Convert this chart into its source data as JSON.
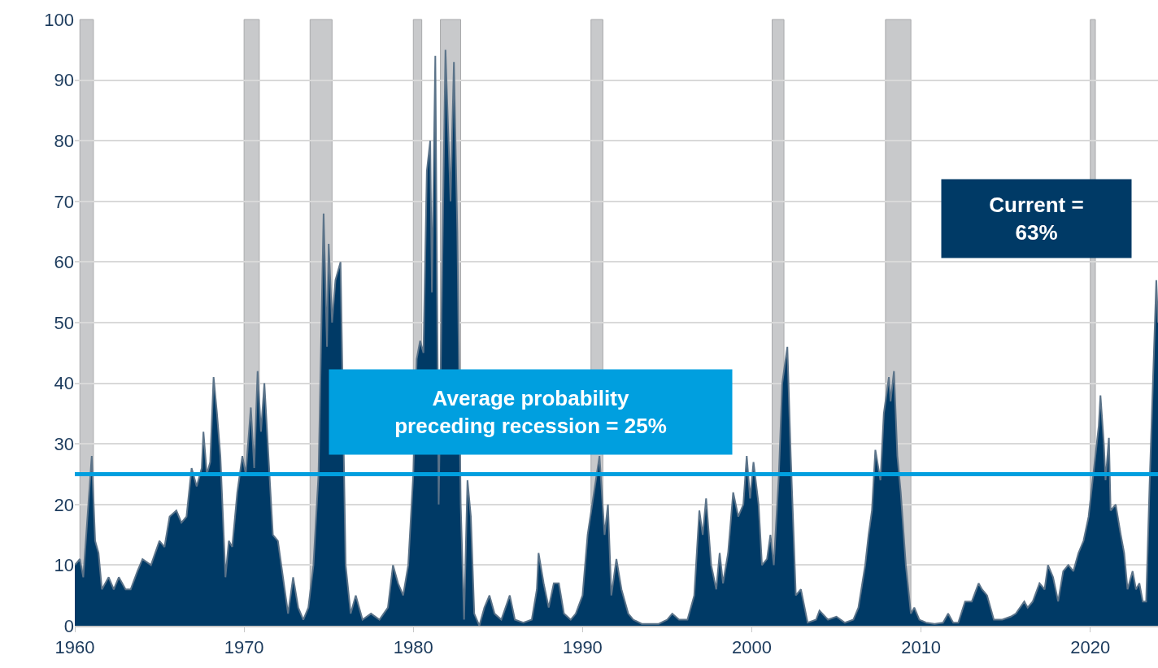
{
  "chart_data": {
    "type": "area",
    "x": [
      1960,
      1960.3,
      1960.5,
      1960.8,
      1961.0,
      1961.2,
      1961.4,
      1961.6,
      1962,
      1962.3,
      1962.6,
      1963,
      1963.3,
      1963.7,
      1964,
      1964.5,
      1965,
      1965.3,
      1965.6,
      1966,
      1966.3,
      1966.6,
      1966.9,
      1967.2,
      1967.5,
      1967.6,
      1967.8,
      1968,
      1968.2,
      1968.4,
      1968.6,
      1968.9,
      1969.1,
      1969.3,
      1969.6,
      1969.9,
      1970.1,
      1970.4,
      1970.6,
      1970.8,
      1971.0,
      1971.2,
      1971.4,
      1971.7,
      1972,
      1972.3,
      1972.6,
      1972.9,
      1973.2,
      1973.5,
      1973.8,
      1974.1,
      1974.4,
      1974.7,
      1974.9,
      1975.0,
      1975.2,
      1975.4,
      1975.6,
      1975.7,
      1975.8,
      1976,
      1976.3,
      1976.6,
      1977,
      1977.5,
      1978,
      1978.5,
      1978.8,
      1979.1,
      1979.4,
      1979.7,
      1980.0,
      1980.2,
      1980.4,
      1980.6,
      1980.8,
      1981.0,
      1981.1,
      1981.3,
      1981.5,
      1981.7,
      1981.9,
      1982.2,
      1982.4,
      1982.6,
      1982.8,
      1983.0,
      1983.2,
      1983.4,
      1983.6,
      1983.9,
      1984.2,
      1984.5,
      1984.8,
      1985.2,
      1985.7,
      1986,
      1986.5,
      1987,
      1987.3,
      1987.4,
      1987.7,
      1988,
      1988.3,
      1988.6,
      1988.9,
      1989.3,
      1989.6,
      1990,
      1990.3,
      1990.7,
      1991,
      1991.3,
      1991.5,
      1991.7,
      1992,
      1992.3,
      1992.7,
      1993,
      1993.5,
      1994.5,
      1995,
      1995.3,
      1995.7,
      1996.2,
      1996.6,
      1996.9,
      1997.1,
      1997.3,
      1997.6,
      1997.9,
      1998.1,
      1998.3,
      1998.6,
      1998.9,
      1999.2,
      1999.5,
      1999.7,
      1999.9,
      2000.1,
      2000.4,
      2000.6,
      2000.9,
      2001.1,
      2001.3,
      2001.6,
      2001.8,
      2002.1,
      2002.3,
      2002.6,
      2002.9,
      2003.3,
      2003.8,
      2004,
      2004.5,
      2005,
      2005.5,
      2006,
      2006.3,
      2006.7,
      2006.9,
      2007.1,
      2007.3,
      2007.6,
      2007.8,
      2008.1,
      2008.2,
      2008.4,
      2008.6,
      2008.8,
      2009.1,
      2009.4,
      2009.6,
      2009.9,
      2010.3,
      2010.8,
      2011.3,
      2011.6,
      2011.9,
      2012.2,
      2012.6,
      2013,
      2013.4,
      2013.6,
      2013.9,
      2014.3,
      2014.8,
      2015.3,
      2015.6,
      2016.1,
      2016.3,
      2016.6,
      2017,
      2017.3,
      2017.5,
      2017.8,
      2018.1,
      2018.4,
      2018.7,
      2019,
      2019.3,
      2019.6,
      2019.9,
      2020.1,
      2020.3,
      2020.5,
      2020.6,
      2020.8,
      2020.9,
      2021.1,
      2021.2,
      2021.5,
      2021.8,
      2022.0,
      2022.2,
      2022.5,
      2022.7,
      2022.9,
      2023.1,
      2023.3,
      2023.5,
      2023.7,
      2023.9,
      2024.0
    ],
    "series": [
      {
        "color": "#003a66",
        "values": [
          10,
          11,
          8,
          20,
          28,
          14,
          12,
          6,
          8,
          6,
          8,
          6,
          6,
          9,
          11,
          10,
          14,
          13,
          18,
          19,
          17,
          18,
          26,
          23,
          26,
          32,
          25,
          27,
          41,
          35,
          28,
          8,
          14,
          13,
          22,
          28,
          25,
          36,
          26,
          42,
          32,
          40,
          30,
          15,
          14,
          8,
          2,
          8,
          3,
          1,
          3,
          10,
          25,
          68,
          46,
          63,
          50,
          57,
          null,
          60,
          null,
          10,
          2,
          5,
          1,
          2,
          1,
          3,
          10,
          7,
          5,
          10,
          25,
          44,
          47,
          45,
          75,
          80,
          55,
          94,
          20,
          null,
          95,
          70,
          93,
          65,
          20,
          1,
          24,
          18,
          2,
          0,
          3,
          5,
          2,
          1,
          5,
          1,
          0.5,
          1,
          6,
          12,
          7,
          3,
          7,
          7,
          2,
          1,
          2,
          5,
          15,
          null,
          28,
          15,
          20,
          5,
          11,
          6,
          2,
          1,
          0.3,
          0.3,
          1,
          2,
          1,
          1,
          5,
          19,
          15,
          21,
          10,
          6,
          12,
          7,
          12,
          22,
          18,
          20,
          28,
          21,
          27,
          20,
          10,
          11,
          15,
          10,
          25,
          40,
          46,
          28,
          5,
          6,
          0.5,
          1,
          2.5,
          1,
          1.5,
          0.5,
          1,
          3,
          10,
          15,
          19,
          29,
          24,
          35,
          41,
          37,
          42,
          28,
          22,
          10,
          2,
          3,
          1,
          0.5,
          0.3,
          0.5,
          2,
          0.5,
          0.5,
          4,
          4,
          7,
          6,
          5,
          1,
          1,
          1.5,
          2,
          4,
          3,
          4,
          7,
          6,
          10,
          8,
          4,
          9,
          10,
          9,
          12,
          14,
          18,
          23,
          28,
          33,
          38,
          30,
          24,
          31,
          19,
          20,
          15,
          12,
          6,
          9,
          6,
          7,
          4,
          4,
          23,
          40,
          57,
          50
        ]
      }
    ],
    "xlim": [
      1960,
      2024
    ],
    "xticks": [
      1960,
      1970,
      1980,
      1990,
      2000,
      2010,
      2020
    ],
    "ylim": [
      0,
      100
    ],
    "yticks": [
      0,
      10,
      20,
      30,
      40,
      50,
      60,
      70,
      80,
      90,
      100
    ],
    "grid": "y",
    "ref_lines": [
      {
        "axis": "y",
        "value": 25,
        "color": "#009fdf"
      }
    ],
    "bands": [
      {
        "axis": "x",
        "from": 1960.3,
        "to": 1961.1,
        "color": "#c8c9cb"
      },
      {
        "axis": "x",
        "from": 1970.0,
        "to": 1970.9,
        "color": "#c8c9cb"
      },
      {
        "axis": "x",
        "from": 1973.9,
        "to": 1975.2,
        "color": "#c8c9cb"
      },
      {
        "axis": "x",
        "from": 1980.0,
        "to": 1980.5,
        "color": "#c8c9cb"
      },
      {
        "axis": "x",
        "from": 1981.6,
        "to": 1982.8,
        "color": "#c8c9cb"
      },
      {
        "axis": "x",
        "from": 1990.5,
        "to": 1991.2,
        "color": "#c8c9cb"
      },
      {
        "axis": "x",
        "from": 2001.2,
        "to": 2001.9,
        "color": "#c8c9cb"
      },
      {
        "axis": "x",
        "from": 2007.9,
        "to": 2009.4,
        "color": "#c8c9cb"
      },
      {
        "axis": "x",
        "from": 2020.0,
        "to": 2020.3,
        "color": "#c8c9cb"
      }
    ],
    "annotations": [
      "Average probability\npreceding recession = 25%",
      "Current =\n63%"
    ]
  }
}
